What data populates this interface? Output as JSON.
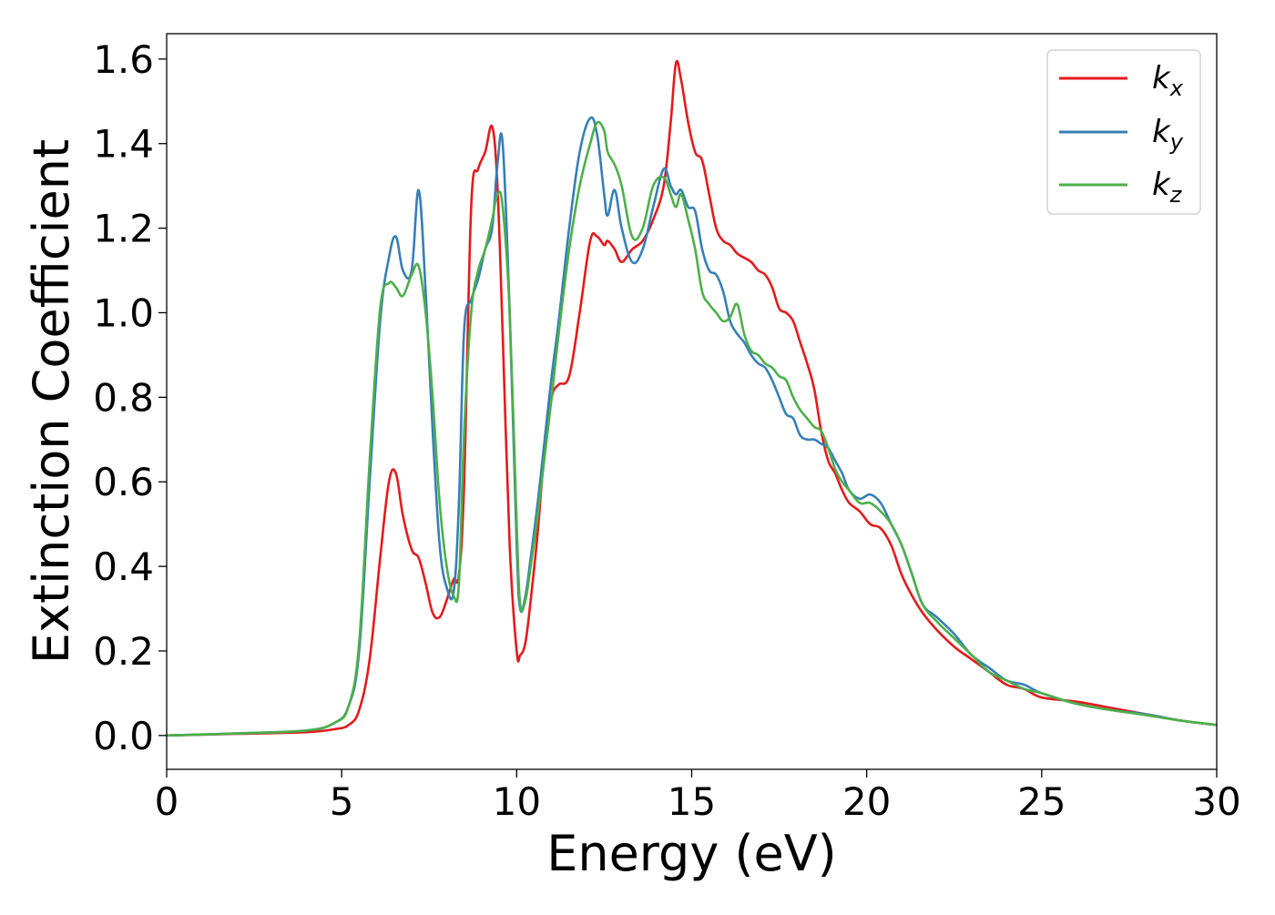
{
  "chart_data": {
    "type": "line",
    "title": "",
    "xlabel": "Energy (eV)",
    "ylabel": "Extinction Coefficient",
    "xlim": [
      0,
      30
    ],
    "ylim": [
      -0.08,
      1.66
    ],
    "xticks": [
      0,
      5,
      10,
      15,
      20,
      25,
      30
    ],
    "xtick_labels": [
      "0",
      "5",
      "10",
      "15",
      "20",
      "25",
      "30"
    ],
    "yticks": [
      0.0,
      0.2,
      0.4,
      0.6,
      0.8,
      1.0,
      1.2,
      1.4,
      1.6
    ],
    "ytick_labels": [
      "0.0",
      "0.2",
      "0.4",
      "0.6",
      "0.8",
      "1.0",
      "1.2",
      "1.4",
      "1.6"
    ],
    "grid": false,
    "legend_position": "top-right",
    "series": [
      {
        "name": "k_x",
        "label_base": "k",
        "label_sub": "x",
        "color": "#e41a1c",
        "x": [
          0,
          2,
          4,
          4.8,
          5.2,
          5.5,
          5.8,
          6.1,
          6.35,
          6.55,
          6.75,
          7.0,
          7.2,
          7.4,
          7.6,
          7.8,
          8.0,
          8.2,
          8.35,
          8.5,
          8.7,
          8.9,
          9.1,
          9.3,
          9.45,
          9.6,
          9.8,
          10.0,
          10.1,
          10.25,
          10.4,
          10.6,
          10.8,
          11.0,
          11.2,
          11.5,
          11.8,
          12.1,
          12.3,
          12.5,
          12.6,
          12.8,
          13.0,
          13.3,
          13.6,
          13.9,
          14.2,
          14.4,
          14.55,
          14.7,
          14.9,
          15.1,
          15.3,
          15.5,
          15.7,
          15.9,
          16.1,
          16.3,
          16.5,
          16.7,
          16.9,
          17.1,
          17.3,
          17.5,
          17.7,
          17.9,
          18.1,
          18.3,
          18.5,
          18.7,
          18.9,
          19.1,
          19.3,
          19.5,
          19.8,
          20.1,
          20.4,
          20.7,
          21.0,
          21.3,
          21.6,
          22.0,
          22.5,
          23.0,
          23.5,
          24.0,
          24.5,
          25.0,
          26.0,
          27.0,
          28.0,
          29.0,
          30.0
        ],
        "y": [
          0.0,
          0.004,
          0.008,
          0.015,
          0.025,
          0.06,
          0.18,
          0.42,
          0.6,
          0.62,
          0.52,
          0.44,
          0.42,
          0.36,
          0.29,
          0.28,
          0.32,
          0.37,
          0.38,
          0.6,
          1.25,
          1.34,
          1.38,
          1.44,
          1.3,
          0.95,
          0.45,
          0.2,
          0.19,
          0.22,
          0.32,
          0.48,
          0.68,
          0.8,
          0.83,
          0.85,
          1.0,
          1.17,
          1.18,
          1.16,
          1.17,
          1.15,
          1.12,
          1.15,
          1.17,
          1.22,
          1.3,
          1.45,
          1.59,
          1.55,
          1.45,
          1.38,
          1.36,
          1.28,
          1.2,
          1.17,
          1.16,
          1.14,
          1.13,
          1.12,
          1.1,
          1.09,
          1.06,
          1.01,
          1.0,
          0.98,
          0.93,
          0.88,
          0.82,
          0.72,
          0.65,
          0.62,
          0.58,
          0.55,
          0.53,
          0.5,
          0.49,
          0.45,
          0.38,
          0.33,
          0.29,
          0.25,
          0.21,
          0.18,
          0.15,
          0.12,
          0.11,
          0.09,
          0.08,
          0.065,
          0.05,
          0.035,
          0.025
        ]
      },
      {
        "name": "k_y",
        "label_base": "k",
        "label_sub": "y",
        "color": "#377eb8",
        "x": [
          0,
          2,
          4,
          4.8,
          5.2,
          5.5,
          5.8,
          6.1,
          6.35,
          6.55,
          6.75,
          7.0,
          7.2,
          7.4,
          7.6,
          7.8,
          8.0,
          8.2,
          8.35,
          8.5,
          8.7,
          8.9,
          9.1,
          9.3,
          9.45,
          9.6,
          9.8,
          10.0,
          10.1,
          10.25,
          10.4,
          10.6,
          10.8,
          11.0,
          11.2,
          11.5,
          11.8,
          12.1,
          12.3,
          12.5,
          12.6,
          12.8,
          13.0,
          13.3,
          13.6,
          13.9,
          14.2,
          14.4,
          14.55,
          14.7,
          14.9,
          15.1,
          15.3,
          15.5,
          15.7,
          15.9,
          16.1,
          16.3,
          16.5,
          16.7,
          16.9,
          17.1,
          17.3,
          17.5,
          17.7,
          17.9,
          18.1,
          18.3,
          18.5,
          18.7,
          18.9,
          19.1,
          19.3,
          19.5,
          19.8,
          20.1,
          20.4,
          20.7,
          21.0,
          21.3,
          21.6,
          22.0,
          22.5,
          23.0,
          23.5,
          24.0,
          24.5,
          25.0,
          26.0,
          27.0,
          28.0,
          29.0,
          30.0
        ],
        "y": [
          0.0,
          0.005,
          0.012,
          0.03,
          0.07,
          0.2,
          0.6,
          0.98,
          1.13,
          1.18,
          1.1,
          1.1,
          1.29,
          1.05,
          0.72,
          0.45,
          0.35,
          0.34,
          0.55,
          0.96,
          1.03,
          1.08,
          1.15,
          1.2,
          1.35,
          1.4,
          1.0,
          0.45,
          0.3,
          0.33,
          0.42,
          0.55,
          0.7,
          0.85,
          0.98,
          1.2,
          1.38,
          1.46,
          1.42,
          1.28,
          1.23,
          1.29,
          1.2,
          1.12,
          1.15,
          1.25,
          1.34,
          1.3,
          1.28,
          1.29,
          1.25,
          1.24,
          1.15,
          1.1,
          1.09,
          1.05,
          0.98,
          0.95,
          0.93,
          0.9,
          0.88,
          0.87,
          0.84,
          0.8,
          0.76,
          0.75,
          0.71,
          0.7,
          0.7,
          0.69,
          0.68,
          0.65,
          0.62,
          0.58,
          0.56,
          0.57,
          0.55,
          0.5,
          0.45,
          0.38,
          0.31,
          0.28,
          0.24,
          0.19,
          0.16,
          0.13,
          0.12,
          0.1,
          0.075,
          0.06,
          0.05,
          0.035,
          0.025
        ]
      },
      {
        "name": "k_z",
        "label_base": "k",
        "label_sub": "z",
        "color": "#4daf4a",
        "x": [
          0,
          2,
          4,
          4.8,
          5.2,
          5.5,
          5.8,
          6.1,
          6.35,
          6.55,
          6.75,
          7.0,
          7.2,
          7.4,
          7.6,
          7.8,
          8.0,
          8.2,
          8.35,
          8.5,
          8.7,
          8.9,
          9.1,
          9.3,
          9.45,
          9.6,
          9.8,
          10.0,
          10.1,
          10.25,
          10.4,
          10.6,
          10.8,
          11.0,
          11.2,
          11.5,
          11.8,
          12.1,
          12.3,
          12.5,
          12.6,
          12.8,
          13.0,
          13.3,
          13.6,
          13.9,
          14.2,
          14.4,
          14.55,
          14.7,
          14.9,
          15.1,
          15.3,
          15.5,
          15.7,
          15.9,
          16.1,
          16.3,
          16.5,
          16.7,
          16.9,
          17.1,
          17.3,
          17.5,
          17.7,
          17.9,
          18.1,
          18.3,
          18.5,
          18.7,
          18.9,
          19.1,
          19.3,
          19.5,
          19.8,
          20.1,
          20.4,
          20.7,
          21.0,
          21.3,
          21.6,
          22.0,
          22.5,
          23.0,
          23.5,
          24.0,
          24.5,
          25.0,
          26.0,
          27.0,
          28.0,
          29.0,
          30.0
        ],
        "y": [
          0.0,
          0.005,
          0.012,
          0.03,
          0.07,
          0.22,
          0.65,
          1.01,
          1.07,
          1.06,
          1.04,
          1.09,
          1.11,
          1.0,
          0.8,
          0.55,
          0.4,
          0.33,
          0.36,
          0.72,
          1.0,
          1.1,
          1.15,
          1.22,
          1.28,
          1.25,
          1.0,
          0.5,
          0.31,
          0.32,
          0.4,
          0.52,
          0.66,
          0.8,
          0.95,
          1.15,
          1.3,
          1.4,
          1.45,
          1.43,
          1.38,
          1.35,
          1.3,
          1.18,
          1.2,
          1.3,
          1.32,
          1.28,
          1.25,
          1.28,
          1.22,
          1.15,
          1.05,
          1.02,
          1.0,
          0.98,
          0.99,
          1.02,
          0.95,
          0.91,
          0.9,
          0.88,
          0.87,
          0.85,
          0.84,
          0.8,
          0.77,
          0.75,
          0.73,
          0.72,
          0.68,
          0.63,
          0.6,
          0.58,
          0.55,
          0.55,
          0.53,
          0.5,
          0.45,
          0.38,
          0.31,
          0.27,
          0.23,
          0.19,
          0.15,
          0.13,
          0.11,
          0.1,
          0.075,
          0.06,
          0.048,
          0.035,
          0.025
        ]
      }
    ]
  }
}
